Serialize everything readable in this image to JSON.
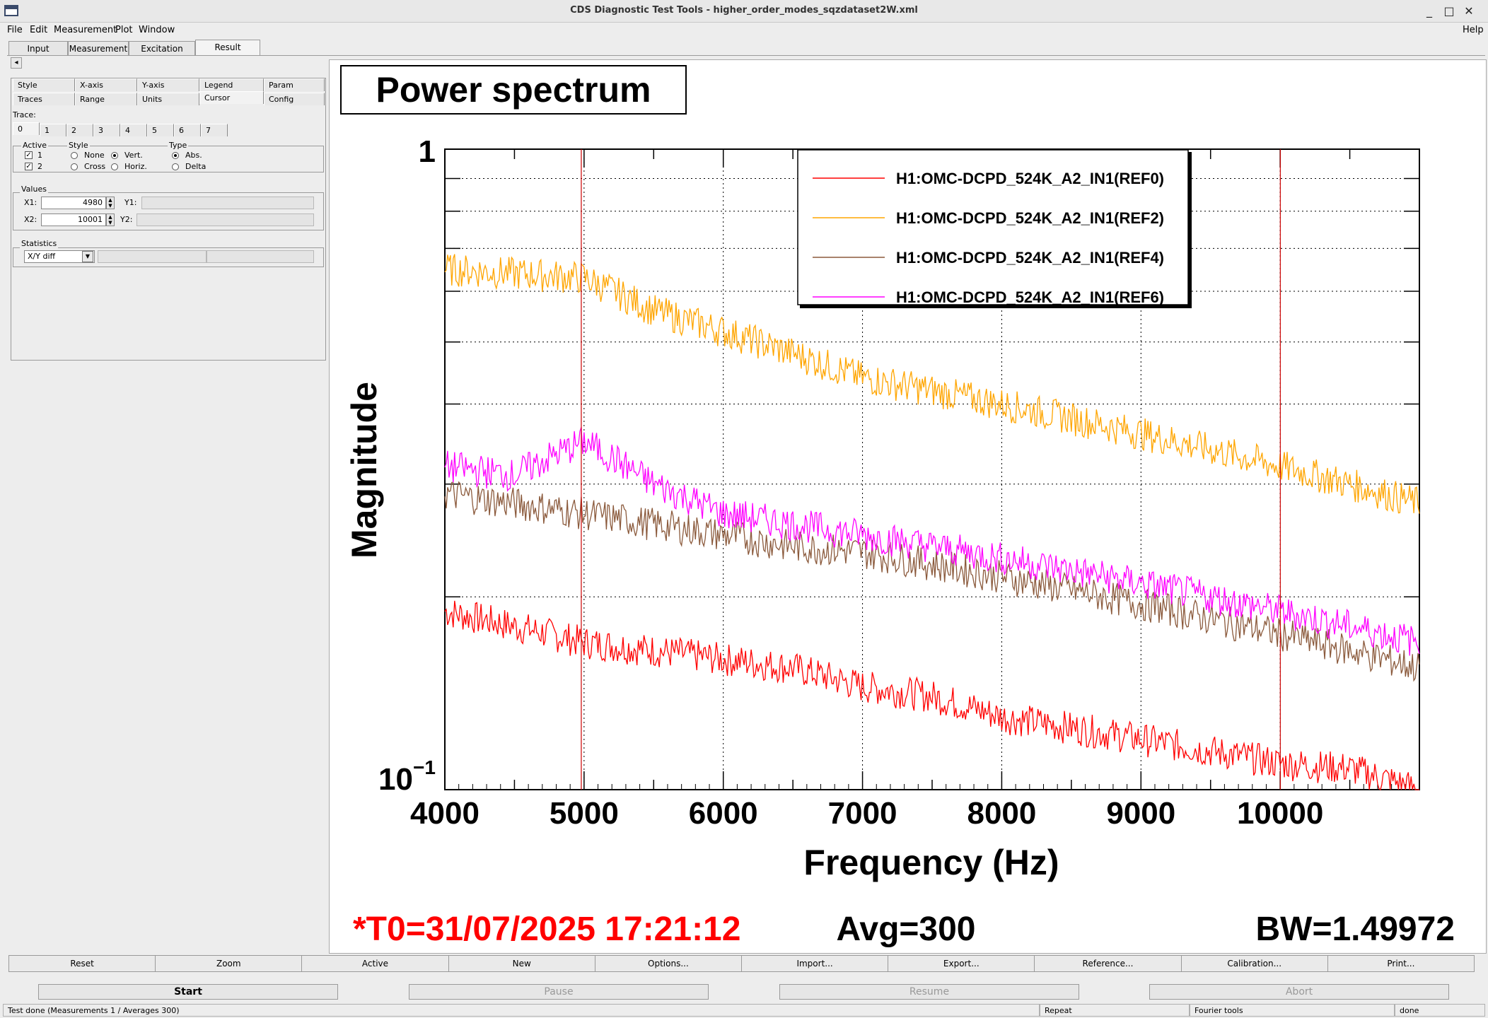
{
  "window": {
    "title": "CDS Diagnostic Test Tools - higher_order_modes_sqzdataset2W.xml",
    "controls": [
      "_",
      "□",
      "✕"
    ]
  },
  "menu": {
    "items": [
      "File",
      "Edit",
      "Measurement",
      "Plot",
      "Window"
    ],
    "help": "Help"
  },
  "tabs": [
    "Input",
    "Measurement",
    "Excitation",
    "Result"
  ],
  "selected_tab": "Result",
  "collapse_arrow": "◂",
  "subtabs": {
    "row1": [
      "Style",
      "X-axis",
      "Y-axis",
      "Legend",
      "Param"
    ],
    "row2": [
      "Traces",
      "Range",
      "Units",
      "Cursor",
      "Config"
    ]
  },
  "trace": {
    "label": "Trace:",
    "tabs": [
      "0",
      "1",
      "2",
      "3",
      "4",
      "5",
      "6",
      "7"
    ]
  },
  "active": {
    "label": "Active",
    "opt1": "1",
    "opt2": "2",
    "check": "✓"
  },
  "style": {
    "label": "Style",
    "none": "None",
    "vert": "Vert.",
    "cross": "Cross",
    "horiz": "Horiz."
  },
  "type": {
    "label": "Type",
    "abs": "Abs.",
    "delta": "Delta"
  },
  "values": {
    "label": "Values",
    "x1_label": "X1:",
    "x1": "4980",
    "y1_label": "Y1:",
    "x2_label": "X2:",
    "x2": "10001",
    "y2_label": "Y2:"
  },
  "statistics": {
    "label": "Statistics",
    "mode": "X/Y diff"
  },
  "plot": {
    "title": "Power spectrum",
    "ylabel": "Magnitude",
    "xlabel": "Frequency (Hz)",
    "t0": "*T0=31/07/2025 17:21:12",
    "avg": "Avg=300",
    "bw": "BW=1.49972",
    "y_top": "1",
    "y_bottom_base": "10",
    "y_bottom_exp": "−1",
    "x_ticks": [
      "4000",
      "5000",
      "6000",
      "7000",
      "8000",
      "9000",
      "10000"
    ]
  },
  "chart_data": {
    "type": "line",
    "title": "Power spectrum",
    "xlabel": "Frequency (Hz)",
    "ylabel": "Magnitude",
    "xlim": [
      4000,
      11000
    ],
    "ylim": [
      0.1,
      1
    ],
    "yscale": "log",
    "legend_position": "top-right",
    "grid": true,
    "cursors_x": [
      4980,
      10001
    ],
    "series": [
      {
        "name": "H1:OMC-DCPD_524K_A2_IN1(REF0)",
        "color": "#ff0000",
        "x": [
          4000,
          4500,
          5000,
          5500,
          6000,
          6500,
          7000,
          7500,
          8000,
          8500,
          9000,
          9500,
          10000,
          10500,
          11000
        ],
        "y": [
          0.19,
          0.18,
          0.17,
          0.165,
          0.16,
          0.155,
          0.145,
          0.14,
          0.13,
          0.125,
          0.12,
          0.115,
          0.11,
          0.108,
          0.1
        ]
      },
      {
        "name": "H1:OMC-DCPD_524K_A2_IN1(REF2)",
        "color": "#ffa500",
        "x": [
          4000,
          4500,
          5000,
          5500,
          6000,
          6500,
          7000,
          7500,
          8000,
          8500,
          9000,
          9500,
          10000,
          10500,
          11000
        ],
        "y": [
          0.65,
          0.64,
          0.63,
          0.56,
          0.52,
          0.48,
          0.44,
          0.42,
          0.4,
          0.38,
          0.36,
          0.34,
          0.32,
          0.3,
          0.28
        ]
      },
      {
        "name": "H1:OMC-DCPD_524K_A2_IN1(REF4)",
        "color": "#8b5a3c",
        "x": [
          4000,
          4500,
          5000,
          5500,
          6000,
          6500,
          7000,
          7500,
          8000,
          8500,
          9000,
          9500,
          10000,
          10500,
          11000
        ],
        "y": [
          0.29,
          0.28,
          0.27,
          0.26,
          0.25,
          0.24,
          0.235,
          0.225,
          0.215,
          0.205,
          0.195,
          0.185,
          0.175,
          0.165,
          0.155
        ]
      },
      {
        "name": "H1:OMC-DCPD_524K_A2_IN1(REF6)",
        "color": "#ff00ff",
        "x": [
          4000,
          4500,
          5000,
          5500,
          6000,
          6500,
          7000,
          7500,
          8000,
          8500,
          9000,
          9500,
          10000,
          10500,
          11000
        ],
        "y": [
          0.32,
          0.31,
          0.35,
          0.3,
          0.27,
          0.26,
          0.25,
          0.24,
          0.23,
          0.22,
          0.21,
          0.2,
          0.19,
          0.18,
          0.17
        ]
      }
    ]
  },
  "toolbar": [
    "Reset",
    "Zoom",
    "Active",
    "New",
    "Options...",
    "Import...",
    "Export...",
    "Reference...",
    "Calibration...",
    "Print..."
  ],
  "controls": {
    "start": "Start",
    "pause": "Pause",
    "resume": "Resume",
    "abort": "Abort"
  },
  "status": {
    "msg": "Test done (Measurements 1 / Averages 300)",
    "repeat": "Repeat",
    "fourier": "Fourier tools",
    "done": "done"
  }
}
